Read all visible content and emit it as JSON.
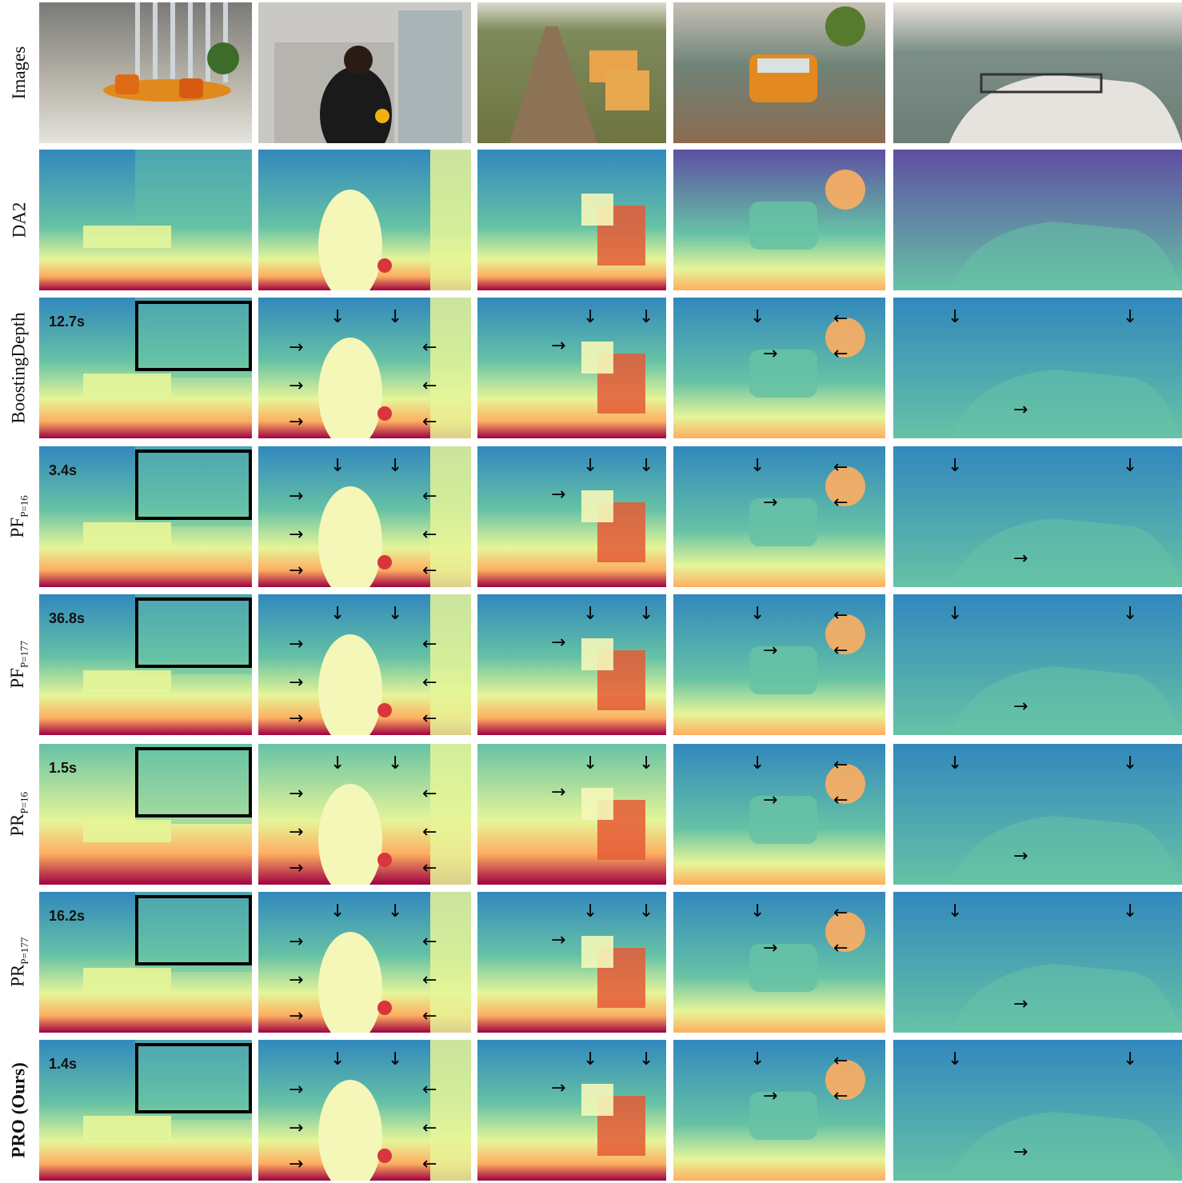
{
  "figure": {
    "rows": [
      {
        "id": "images",
        "label": "Images",
        "label_sub": "",
        "timing": "",
        "kind": "photo"
      },
      {
        "id": "da2",
        "label": "DA2",
        "label_sub": "",
        "timing": "",
        "kind": "depth"
      },
      {
        "id": "boosting",
        "label": "BoostingDepth",
        "label_sub": "",
        "timing": "12.7s",
        "kind": "depth"
      },
      {
        "id": "pf16",
        "label": "PF",
        "label_sub": "P=16",
        "timing": "3.4s",
        "kind": "depth"
      },
      {
        "id": "pf177",
        "label": "PF",
        "label_sub": "P=177",
        "timing": "36.8s",
        "kind": "depth"
      },
      {
        "id": "pr16",
        "label": "PR",
        "label_sub": "P=16",
        "timing": "1.5s",
        "kind": "depth"
      },
      {
        "id": "pr177",
        "label": "PR",
        "label_sub": "P=177",
        "timing": "16.2s",
        "kind": "depth"
      },
      {
        "id": "pro",
        "label": "PRO (Ours)",
        "label_sub": "",
        "timing": "1.4s",
        "kind": "depth",
        "bold": true
      }
    ],
    "columns": [
      "lobby-scene",
      "woman-sunflower-scene",
      "path-bench-scene",
      "van-scene",
      "van-closeup-scene"
    ],
    "colors": {
      "depth_far": "#5e4fa2",
      "depth_mid_far": "#3288bd",
      "depth_mid": "#66c2a5",
      "depth_mid_near": "#e6f598",
      "depth_near": "#fdae61",
      "depth_closest": "#9e0142",
      "box": "#000000",
      "arrow": "#000000"
    }
  }
}
